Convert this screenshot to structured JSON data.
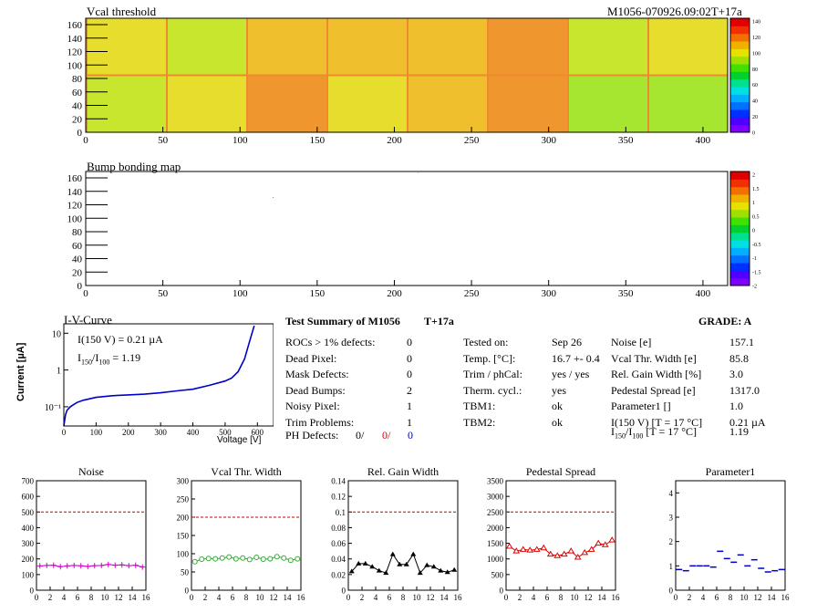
{
  "header": {
    "vcal_title": "Vcal threshold",
    "module_id": "M1056-070926.09:02T+17a",
    "bump_title": "Bump bonding map"
  },
  "maps": {
    "x_ticks": [
      "0",
      "50",
      "100",
      "150",
      "200",
      "250",
      "300",
      "350",
      "400"
    ],
    "y_ticks": [
      "0",
      "20",
      "40",
      "60",
      "80",
      "100",
      "120",
      "140",
      "160"
    ],
    "vcal_palette_ticks": [
      "0",
      "20",
      "40",
      "60",
      "80",
      "100",
      "120",
      "140"
    ],
    "bump_palette_ticks": [
      "-2",
      "-1.5",
      "-1",
      "-0.5",
      "0",
      "0.5",
      "1",
      "1.5",
      "2"
    ],
    "vcal_heat": [
      [
        2,
        1,
        3,
        3,
        3,
        4,
        1,
        2
      ],
      [
        1,
        2,
        4,
        2,
        3,
        4,
        0,
        0
      ]
    ],
    "heat_colors": [
      "#a6e630",
      "#c9e62e",
      "#e6dd2d",
      "#f0bf2e",
      "#f0962e"
    ]
  },
  "iv": {
    "title": "I-V-Curve",
    "ylabel": "Current [µA]",
    "xlabel": "Voltage [V]",
    "i150": "I(150 V) = 0.21 µA",
    "ratio_pre": "I",
    "ratio_sub1": "150",
    "ratio_mid": "/I",
    "ratio_sub2": "100",
    "ratio_val": "= 1.19",
    "x_ticks": [
      "0",
      "100",
      "200",
      "300",
      "400",
      "500",
      "600"
    ],
    "y_ticks": [
      "10⁻¹",
      "1",
      "10"
    ]
  },
  "summary": {
    "title": "Test Summary of M1056",
    "tag": "T+17a",
    "grade": "GRADE: A",
    "left_rows": [
      {
        "label": "ROCs > 1% defects:",
        "value": "0"
      },
      {
        "label": "Dead Pixel:",
        "value": "0"
      },
      {
        "label": "Mask Defects:",
        "value": "0"
      },
      {
        "label": "Dead Bumps:",
        "value": "2"
      },
      {
        "label": "Noisy Pixel:",
        "value": "1"
      },
      {
        "label": "Trim Problems:",
        "value": "1"
      }
    ],
    "ph_label": "PH Defects:",
    "ph_values": [
      "0/",
      "0/",
      "0"
    ],
    "mid_rows": [
      {
        "label": "Tested on:",
        "value": "Sep 26"
      },
      {
        "label": "Temp. [°C]:",
        "value": "16.7 +- 0.4"
      },
      {
        "label": "Trim / phCal:",
        "value": "yes / yes"
      },
      {
        "label": "Therm. cycl.:",
        "value": "yes"
      },
      {
        "label": "TBM1:",
        "value": "ok"
      },
      {
        "label": "TBM2:",
        "value": "ok"
      }
    ],
    "right_rows": [
      {
        "label": "Noise [e]",
        "value": "157.1"
      },
      {
        "label": "Vcal Thr. Width [e]",
        "value": "85.8"
      },
      {
        "label": "Rel. Gain Width [%]",
        "value": "3.0"
      },
      {
        "label": "Pedestal Spread [e]",
        "value": "1317.0"
      },
      {
        "label": "Parameter1 []",
        "value": "1.0"
      },
      {
        "label": "I(150 V) [T = 17 °C]",
        "value": "0.21 µA"
      }
    ],
    "ratio_row": {
      "pre": "I",
      "sub1": "150",
      "mid": "/I",
      "sub2": "100",
      "post": " [T = 17 °C]",
      "value": "1.19"
    }
  },
  "chart_data": [
    {
      "type": "line",
      "title": "I-V-Curve",
      "xlabel": "Voltage [V]",
      "ylabel": "Current [µA]",
      "yscale": "log",
      "x": [
        0,
        5,
        10,
        20,
        40,
        60,
        100,
        150,
        200,
        250,
        300,
        350,
        400,
        450,
        500,
        520,
        540,
        560,
        570,
        580,
        590
      ],
      "y": [
        0.03,
        0.06,
        0.08,
        0.1,
        0.13,
        0.15,
        0.18,
        0.2,
        0.21,
        0.22,
        0.24,
        0.27,
        0.3,
        0.38,
        0.5,
        0.6,
        0.9,
        2.0,
        4.0,
        8.0,
        16.0
      ],
      "xlim": [
        0,
        650
      ],
      "ylim": [
        0.03,
        18
      ]
    },
    {
      "type": "line",
      "title": "Noise",
      "x": [
        0,
        1,
        2,
        3,
        4,
        5,
        6,
        7,
        8,
        9,
        10,
        11,
        12,
        13,
        14,
        15
      ],
      "y": [
        155,
        158,
        160,
        150,
        155,
        158,
        156,
        152,
        157,
        158,
        165,
        160,
        162,
        157,
        160,
        148
      ],
      "reference": 500,
      "xlim": [
        0,
        16
      ],
      "ylim": [
        0,
        700
      ],
      "y_ticks": [
        0,
        100,
        200,
        300,
        400,
        500,
        600,
        700
      ],
      "x_ticks": [
        0,
        2,
        4,
        6,
        8,
        10,
        12,
        14,
        16
      ],
      "color": "#cc00cc"
    },
    {
      "type": "line",
      "title": "Vcal Thr. Width",
      "x": [
        0,
        1,
        2,
        3,
        4,
        5,
        6,
        7,
        8,
        9,
        10,
        11,
        12,
        13,
        14,
        15
      ],
      "y": [
        78,
        85,
        87,
        86,
        88,
        91,
        86,
        88,
        84,
        90,
        85,
        86,
        92,
        88,
        82,
        86
      ],
      "reference": 200,
      "xlim": [
        0,
        16
      ],
      "ylim": [
        0,
        300
      ],
      "y_ticks": [
        0,
        50,
        100,
        150,
        200,
        250,
        300
      ],
      "x_ticks": [
        0,
        2,
        4,
        6,
        8,
        10,
        12,
        14,
        16
      ],
      "color": "#33aa33"
    },
    {
      "type": "line",
      "title": "Rel. Gain Width",
      "x": [
        0,
        1,
        2,
        3,
        4,
        5,
        6,
        7,
        8,
        9,
        10,
        11,
        12,
        13,
        14,
        15
      ],
      "y": [
        0.024,
        0.034,
        0.034,
        0.03,
        0.025,
        0.022,
        0.046,
        0.033,
        0.033,
        0.046,
        0.022,
        0.032,
        0.03,
        0.025,
        0.023,
        0.026
      ],
      "reference": 0.1,
      "xlim": [
        0,
        16
      ],
      "ylim": [
        0,
        0.14
      ],
      "y_ticks": [
        0,
        0.02,
        0.04,
        0.06,
        0.08,
        0.1,
        0.12,
        0.14
      ],
      "x_ticks": [
        0,
        2,
        4,
        6,
        8,
        10,
        12,
        14,
        16
      ],
      "color": "#000000"
    },
    {
      "type": "line",
      "title": "Pedestal Spread",
      "x": [
        0,
        1,
        2,
        3,
        4,
        5,
        6,
        7,
        8,
        9,
        10,
        11,
        12,
        13,
        14,
        15
      ],
      "y": [
        1400,
        1250,
        1300,
        1280,
        1300,
        1350,
        1150,
        1100,
        1150,
        1250,
        1050,
        1200,
        1300,
        1500,
        1450,
        1600
      ],
      "reference": 2500,
      "xlim": [
        0,
        16
      ],
      "ylim": [
        0,
        3500
      ],
      "y_ticks": [
        0,
        500,
        1000,
        1500,
        2000,
        2500,
        3000,
        3500
      ],
      "x_ticks": [
        0,
        2,
        4,
        6,
        8,
        10,
        12,
        14,
        16
      ],
      "color": "#dd0000"
    },
    {
      "type": "scatter",
      "title": "Parameter1",
      "x": [
        0,
        1,
        2,
        3,
        4,
        5,
        6,
        7,
        8,
        9,
        10,
        11,
        12,
        13,
        14,
        15
      ],
      "y": [
        0.85,
        0.8,
        1.0,
        1.0,
        1.0,
        0.95,
        1.6,
        1.3,
        1.15,
        1.45,
        1.0,
        1.25,
        0.9,
        0.75,
        0.8,
        0.85
      ],
      "xlim": [
        0,
        16
      ],
      "ylim": [
        0,
        4.5
      ],
      "y_ticks": [
        0,
        1,
        2,
        3,
        4
      ],
      "x_ticks": [
        0,
        2,
        4,
        6,
        8,
        10,
        12,
        14,
        16
      ],
      "color": "#0000cc"
    }
  ]
}
